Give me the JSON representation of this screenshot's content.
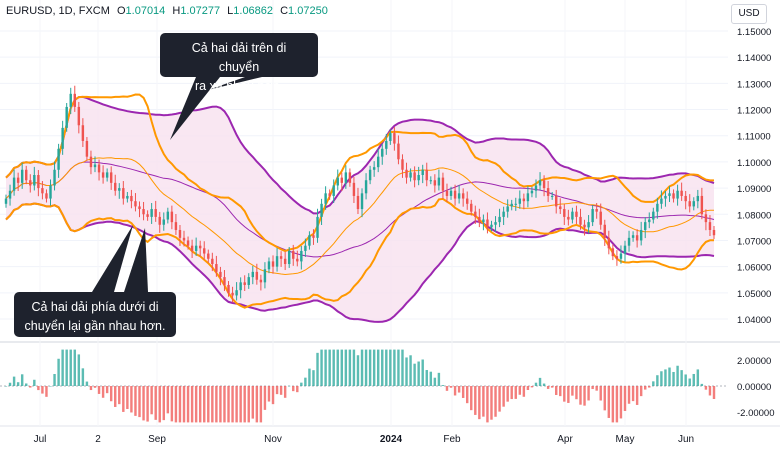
{
  "header": {
    "symbol": "EURUSD, 1D, FXCM",
    "o_label": "O",
    "o_value": "1.07014",
    "h_label": "H",
    "h_value": "1.07277",
    "l_label": "L",
    "l_value": "1.06862",
    "c_label": "C",
    "c_value": "1.07250"
  },
  "currency_button": "USD",
  "callouts": {
    "top": [
      "Cả hai dải trên di chuyển",
      "ra xa nhau hơn."
    ],
    "bottom": [
      "Cả hai dải phía dưới di",
      "chuyển lại gần nhau hơn."
    ]
  },
  "chart_data": [
    {
      "type": "candlestick",
      "title": "",
      "ylim": [
        1.035,
        1.155
      ],
      "y_ticks": [
        "1.15000",
        "1.14000",
        "1.13000",
        "1.12000",
        "1.11000",
        "1.10000",
        "1.09000",
        "1.08000",
        "1.07000",
        "1.06000",
        "1.05000",
        "1.04000"
      ],
      "x_ticks": [
        "Jul",
        "2",
        "Sep",
        "Nov",
        "2024",
        "Feb",
        "Apr",
        "May",
        "Jun"
      ],
      "close_series": [
        1.086,
        1.089,
        1.094,
        1.092,
        1.097,
        1.093,
        1.091,
        1.095,
        1.09,
        1.088,
        1.086,
        1.091,
        1.097,
        1.105,
        1.113,
        1.121,
        1.126,
        1.121,
        1.114,
        1.108,
        1.102,
        1.098,
        1.099,
        1.096,
        1.094,
        1.096,
        1.092,
        1.089,
        1.09,
        1.086,
        1.087,
        1.085,
        1.083,
        1.082,
        1.08,
        1.079,
        1.082,
        1.079,
        1.076,
        1.078,
        1.081,
        1.077,
        1.074,
        1.071,
        1.07,
        1.068,
        1.066,
        1.068,
        1.067,
        1.065,
        1.063,
        1.061,
        1.058,
        1.056,
        1.053,
        1.05,
        1.049,
        1.051,
        1.054,
        1.053,
        1.056,
        1.058,
        1.055,
        1.054,
        1.059,
        1.062,
        1.06,
        1.064,
        1.063,
        1.061,
        1.066,
        1.063,
        1.062,
        1.066,
        1.068,
        1.072,
        1.071,
        1.079,
        1.084,
        1.088,
        1.087,
        1.091,
        1.094,
        1.092,
        1.096,
        1.092,
        1.087,
        1.082,
        1.088,
        1.093,
        1.097,
        1.098,
        1.102,
        1.105,
        1.108,
        1.111,
        1.107,
        1.101,
        1.097,
        1.094,
        1.096,
        1.093,
        1.095,
        1.097,
        1.093,
        1.093,
        1.091,
        1.094,
        1.089,
        1.087,
        1.089,
        1.086,
        1.088,
        1.086,
        1.084,
        1.081,
        1.079,
        1.077,
        1.078,
        1.075,
        1.076,
        1.077,
        1.079,
        1.081,
        1.083,
        1.084,
        1.084,
        1.086,
        1.085,
        1.088,
        1.089,
        1.091,
        1.093,
        1.09,
        1.087,
        1.087,
        1.083,
        1.082,
        1.079,
        1.078,
        1.081,
        1.079,
        1.076,
        1.075,
        1.077,
        1.082,
        1.081,
        1.076,
        1.071,
        1.067,
        1.064,
        1.063,
        1.065,
        1.068,
        1.071,
        1.072,
        1.07,
        1.074,
        1.077,
        1.078,
        1.081,
        1.084,
        1.086,
        1.087,
        1.088,
        1.086,
        1.089,
        1.087,
        1.085,
        1.083,
        1.085,
        1.087,
        1.08,
        1.077,
        1.074,
        1.072
      ],
      "bollinger_sets": [
        {
          "name": "",
          "color": "#9c27b0"
        },
        {
          "name": "",
          "color": "#ff9800"
        }
      ]
    },
    {
      "type": "histogram",
      "y_ticks": [
        "2.00000",
        "0.00000",
        "-2.00000"
      ],
      "ylim": [
        -3,
        3
      ],
      "positive_color": "#26a69a",
      "negative_color": "#ef5350"
    }
  ]
}
